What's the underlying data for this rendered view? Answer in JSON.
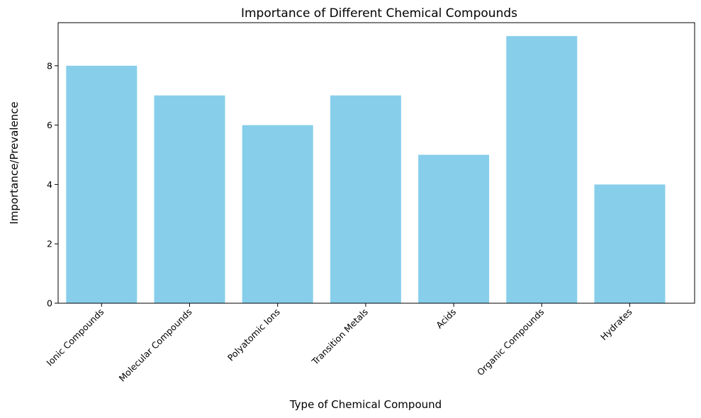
{
  "chart_data": {
    "type": "bar",
    "title": "Importance of Different Chemical Compounds",
    "xlabel": "Type of Chemical Compound",
    "ylabel": "Importance/Prevalence",
    "categories": [
      "Ionic Compounds",
      "Molecular Compounds",
      "Polyatomic Ions",
      "Transition Metals",
      "Acids",
      "Organic Compounds",
      "Hydrates"
    ],
    "values": [
      8,
      7,
      6,
      7,
      5,
      9,
      4
    ],
    "ylim": [
      0,
      9.45
    ],
    "yticks": [
      0,
      2,
      4,
      6,
      8
    ],
    "ytick_labels": [
      "0",
      "2",
      "4",
      "6",
      "8"
    ],
    "bar_color": "#87CEEB",
    "grid": false,
    "legend": "none"
  }
}
